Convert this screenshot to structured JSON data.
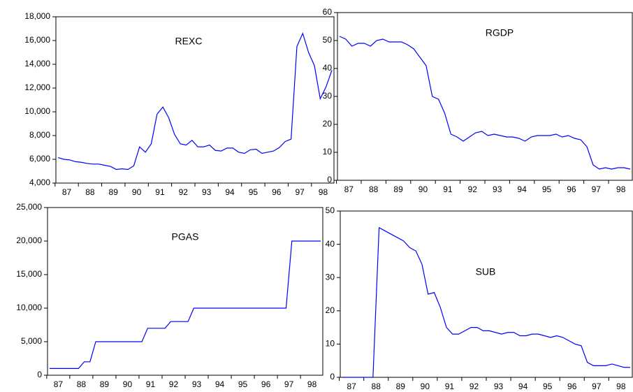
{
  "chart_data": [
    {
      "type": "line",
      "title": "REXC",
      "color": "#0000ff",
      "categories": [
        "87",
        null,
        null,
        null,
        "88",
        null,
        null,
        null,
        "89",
        null,
        null,
        null,
        "90",
        null,
        null,
        null,
        "91",
        null,
        null,
        null,
        "92",
        null,
        null,
        null,
        "93",
        null,
        null,
        null,
        "94",
        null,
        null,
        null,
        "95",
        null,
        null,
        null,
        "96",
        null,
        null,
        null,
        "97",
        null,
        null,
        null,
        "98",
        null,
        null,
        null
      ],
      "values": [
        6150,
        6000,
        5950,
        5800,
        5750,
        5650,
        5600,
        5600,
        5500,
        5400,
        5150,
        5200,
        5150,
        5450,
        7050,
        6600,
        7300,
        9800,
        10400,
        9500,
        8100,
        7300,
        7200,
        7600,
        7050,
        7050,
        7200,
        6750,
        6700,
        6950,
        6950,
        6600,
        6500,
        6800,
        6850,
        6500,
        6600,
        6700,
        7000,
        7500,
        7700,
        15500,
        16600,
        15000,
        13900,
        11100,
        12100,
        13500
      ],
      "ylim": [
        4000,
        18000
      ],
      "yticks": [
        {
          "value": 4000,
          "label": "4,000"
        },
        {
          "value": 6000,
          "label": "6,000"
        },
        {
          "value": 8000,
          "label": "8,000"
        },
        {
          "value": 10000,
          "label": "10,000"
        },
        {
          "value": 12000,
          "label": "12,000"
        },
        {
          "value": 14000,
          "label": "14,000"
        },
        {
          "value": 16000,
          "label": "16,000"
        },
        {
          "value": 18000,
          "label": "18,000"
        }
      ]
    },
    {
      "type": "line",
      "title": "RGDP",
      "color": "#0000ff",
      "categories": [
        "87",
        null,
        null,
        null,
        "88",
        null,
        null,
        null,
        "89",
        null,
        null,
        null,
        "90",
        null,
        null,
        null,
        "91",
        null,
        null,
        null,
        "92",
        null,
        null,
        null,
        "93",
        null,
        null,
        null,
        "94",
        null,
        null,
        null,
        "95",
        null,
        null,
        null,
        "96",
        null,
        null,
        null,
        "97",
        null,
        null,
        null,
        "98",
        null,
        null,
        null
      ],
      "values": [
        51.5,
        50.5,
        48,
        49,
        49,
        48,
        50,
        50.5,
        49.5,
        49.5,
        49.5,
        48.5,
        47,
        44,
        41,
        30,
        29,
        24,
        16.5,
        15.5,
        14,
        15.5,
        17,
        17.5,
        16,
        16.5,
        16,
        15.5,
        15.5,
        15,
        14,
        15.5,
        16,
        16,
        16,
        16.5,
        15.5,
        16,
        15,
        14.5,
        12,
        5.5,
        4,
        4.5,
        4,
        4.5,
        4.5,
        4
      ],
      "ylim": [
        0,
        60
      ],
      "yticks": [
        0,
        10,
        20,
        30,
        40,
        50,
        60
      ]
    },
    {
      "type": "line",
      "title": "PGAS",
      "color": "#0000ff",
      "categories": [
        "87",
        null,
        null,
        null,
        "88",
        null,
        null,
        null,
        "89",
        null,
        null,
        null,
        "90",
        null,
        null,
        null,
        "91",
        null,
        null,
        null,
        "92",
        null,
        null,
        null,
        "93",
        null,
        null,
        null,
        "94",
        null,
        null,
        null,
        "95",
        null,
        null,
        null,
        "96",
        null,
        null,
        null,
        "97",
        null,
        null,
        null,
        "98",
        null,
        null,
        null
      ],
      "values": [
        1000,
        1000,
        1000,
        1000,
        1000,
        1000,
        2000,
        2000,
        5000,
        5000,
        5000,
        5000,
        5000,
        5000,
        5000,
        5000,
        5000,
        7000,
        7000,
        7000,
        7000,
        8000,
        8000,
        8000,
        8000,
        10000,
        10000,
        10000,
        10000,
        10000,
        10000,
        10000,
        10000,
        10000,
        10000,
        10000,
        10000,
        10000,
        10000,
        10000,
        10000,
        10000,
        20000,
        20000,
        20000,
        20000,
        20000,
        20000
      ],
      "ylim": [
        0,
        25000
      ],
      "yticks": [
        0,
        {
          "value": 5000,
          "label": "5,000"
        },
        {
          "value": 10000,
          "label": "10,000"
        },
        {
          "value": 15000,
          "label": "15,000"
        },
        {
          "value": 20000,
          "label": "20,000"
        },
        {
          "value": 25000,
          "label": "25,000"
        }
      ]
    },
    {
      "type": "line",
      "title": "SUB",
      "color": "#0000ff",
      "categories": [
        "87",
        null,
        null,
        null,
        "88",
        null,
        null,
        null,
        "89",
        null,
        null,
        null,
        "90",
        null,
        null,
        null,
        "91",
        null,
        null,
        null,
        "92",
        null,
        null,
        null,
        "93",
        null,
        null,
        null,
        "94",
        null,
        null,
        null,
        "95",
        null,
        null,
        null,
        "96",
        null,
        null,
        null,
        "97",
        null,
        null,
        null,
        "98",
        null,
        null,
        null
      ],
      "values": [
        0,
        0,
        0,
        0,
        0,
        0,
        45,
        44,
        43,
        42,
        41,
        39,
        38,
        34,
        25,
        25.5,
        21,
        15,
        13,
        13,
        14,
        15,
        15,
        14,
        14,
        13.5,
        13,
        13.5,
        13.5,
        12.5,
        12.5,
        13,
        13,
        12.5,
        12,
        12.5,
        12,
        11,
        10,
        9.5,
        4.5,
        3.5,
        3.5,
        3.5,
        4,
        3.5,
        3,
        3
      ],
      "ylim": [
        0,
        50
      ],
      "yticks": [
        0,
        10,
        20,
        30,
        40,
        50
      ]
    }
  ]
}
